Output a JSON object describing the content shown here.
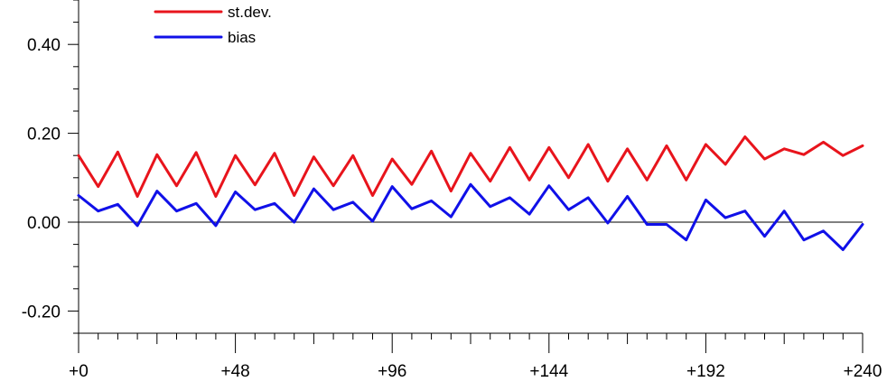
{
  "chart_data": {
    "type": "line",
    "title": "",
    "xlabel": "",
    "ylabel": "",
    "xlim": [
      0,
      240
    ],
    "ylim": [
      -0.25,
      0.5
    ],
    "x_ticks": [
      {
        "value": 0,
        "label": "+0"
      },
      {
        "value": 48,
        "label": "+48"
      },
      {
        "value": 96,
        "label": "+96"
      },
      {
        "value": 144,
        "label": "+144"
      },
      {
        "value": 192,
        "label": "+192"
      },
      {
        "value": 240,
        "label": "+240"
      }
    ],
    "y_ticks": [
      {
        "value": 0.4,
        "label": "0.40"
      },
      {
        "value": 0.2,
        "label": "0.20"
      },
      {
        "value": 0.0,
        "label": "0.00"
      },
      {
        "value": -0.2,
        "label": "-0.20"
      }
    ],
    "grid": false,
    "legend_position": "top-left",
    "zero_line": true,
    "x": [
      0,
      6,
      12,
      18,
      24,
      30,
      36,
      42,
      48,
      54,
      60,
      66,
      72,
      78,
      84,
      90,
      96,
      102,
      108,
      114,
      120,
      126,
      132,
      138,
      144,
      150,
      156,
      162,
      168,
      174,
      180,
      186,
      192,
      198,
      204,
      210,
      216,
      222,
      228,
      234,
      240
    ],
    "series": [
      {
        "name": "st.dev.",
        "color": "#e8141c",
        "values": [
          0.15,
          0.08,
          0.158,
          0.058,
          0.152,
          0.082,
          0.157,
          0.058,
          0.15,
          0.084,
          0.155,
          0.06,
          0.147,
          0.082,
          0.15,
          0.06,
          0.142,
          0.085,
          0.16,
          0.07,
          0.155,
          0.092,
          0.168,
          0.095,
          0.168,
          0.1,
          0.175,
          0.092,
          0.165,
          0.095,
          0.172,
          0.095,
          0.175,
          0.13,
          0.192,
          0.142,
          0.165,
          0.152,
          0.18,
          0.15,
          0.172
        ]
      },
      {
        "name": "bias",
        "color": "#1010e8",
        "values": [
          0.06,
          0.025,
          0.04,
          -0.008,
          0.07,
          0.025,
          0.042,
          -0.008,
          0.068,
          0.028,
          0.042,
          0.0,
          0.075,
          0.028,
          0.045,
          0.002,
          0.08,
          0.03,
          0.048,
          0.012,
          0.085,
          0.035,
          0.055,
          0.018,
          0.082,
          0.028,
          0.055,
          -0.002,
          0.058,
          -0.005,
          -0.005,
          -0.04,
          0.05,
          0.01,
          0.025,
          -0.032,
          0.025,
          -0.04,
          -0.02,
          -0.062,
          -0.005
        ]
      }
    ]
  }
}
